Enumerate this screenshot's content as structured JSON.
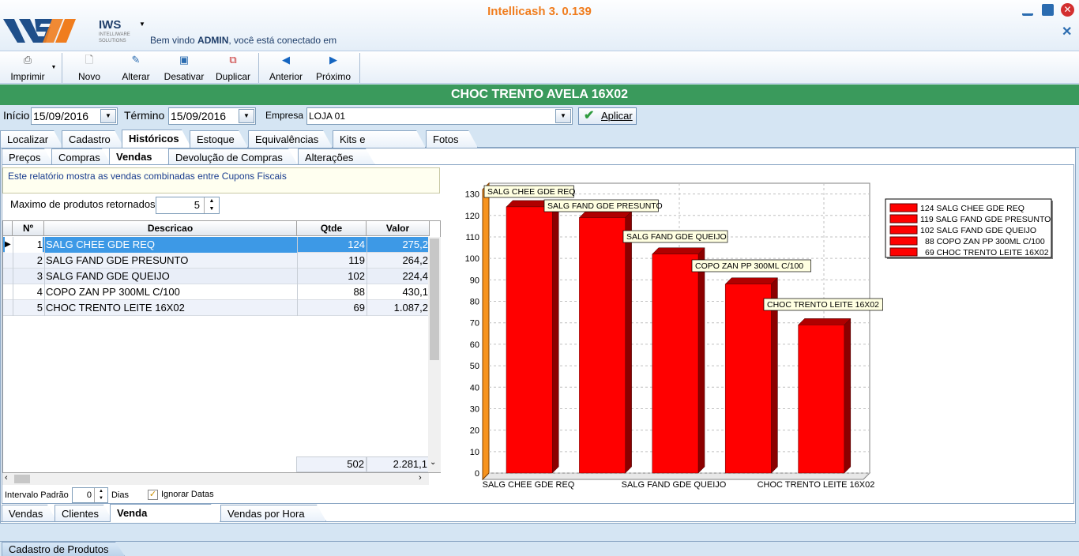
{
  "app": {
    "title": "Intellicash 3. 0.139",
    "logo_text": "IWS",
    "logo_sub1": "INTELLIWARE",
    "logo_sub2": "SOLUTIONS",
    "welcome_prefix": "Bem vindo ",
    "welcome_user": "ADMIN",
    "welcome_suffix": ", você está conectado em"
  },
  "toolbar": {
    "imprimir": "Imprimir",
    "novo": "Novo",
    "alterar": "Alterar",
    "desativar": "Desativar",
    "duplicar": "Duplicar",
    "anterior": "Anterior",
    "proximo": "Próximo"
  },
  "product": {
    "title": "CHOC TRENTO AVELA 16X02"
  },
  "filters": {
    "inicio_label": "Início",
    "inicio_value": "15/09/2016",
    "termino_label": "Término",
    "termino_value": "15/09/2016",
    "empresa_label": "Empresa",
    "empresa_value": "LOJA 01",
    "apply_label": "Aplicar"
  },
  "main_tabs": [
    "Localizar",
    "Cadastro",
    "Históricos",
    "Estoque",
    "Equivalências",
    "Kits e Produção",
    "Fotos"
  ],
  "sub_tabs": [
    "Preços",
    "Compras",
    "Vendas",
    "Devolução de Compras",
    "Alterações"
  ],
  "bottom_tabs": [
    "Vendas",
    "Clientes",
    "Venda Combinada",
    "Vendas por Hora"
  ],
  "info_text": "Este relatório mostra as vendas combinadas entre Cupons Fiscais",
  "max_label": "Maximo de produtos retornados",
  "max_value": "5",
  "grid": {
    "headers": [
      "Nº",
      "Descricao",
      "Qtde",
      "Valor"
    ],
    "rows": [
      {
        "n": "1",
        "desc": "SALG CHEE GDE REQ",
        "qtde": "124",
        "valor": "275,2"
      },
      {
        "n": "2",
        "desc": "SALG FAND GDE PRESUNTO",
        "qtde": "119",
        "valor": "264,2"
      },
      {
        "n": "3",
        "desc": "SALG FAND GDE QUEIJO",
        "qtde": "102",
        "valor": "224,4"
      },
      {
        "n": "4",
        "desc": "COPO ZAN PP 300ML C/100",
        "qtde": "88",
        "valor": "430,1"
      },
      {
        "n": "5",
        "desc": "CHOC TRENTO LEITE 16X02",
        "qtde": "69",
        "valor": "1.087,2"
      }
    ],
    "total_qtde": "502",
    "total_valor": "2.281,1"
  },
  "intervalo_label": "Intervalo Padrão",
  "intervalo_value": "0",
  "dias_label": "Dias",
  "ignorar_label": "Ignorar Datas",
  "status_tab": "Cadastro de Produtos",
  "colors": {
    "bar": "#ff0000",
    "bar_dark": "#8b0000",
    "header_green": "#3a9a5c",
    "title_orange": "#f07d1e"
  },
  "chart_data": {
    "type": "bar",
    "categories": [
      "SALG CHEE GDE REQ",
      "SALG FAND GDE PRESUNTO",
      "SALG FAND GDE QUEIJO",
      "COPO ZAN PP 300ML C/100",
      "CHOC TRENTO LEITE 16X02"
    ],
    "values": [
      124,
      119,
      102,
      88,
      69
    ],
    "ylim": [
      0,
      135
    ],
    "yticks": [
      0,
      10,
      20,
      30,
      40,
      50,
      60,
      70,
      80,
      90,
      100,
      110,
      120,
      130
    ],
    "x_tick_labels": [
      "SALG CHEE GDE REQ",
      "SALG FAND GDE QUEIJO",
      "CHOC TRENTO LEITE 16X02"
    ],
    "legend": [
      "124 SALG CHEE GDE REQ",
      "119 SALG FAND GDE PRESUNTO",
      "102 SALG FAND GDE QUEIJO",
      "88 COPO ZAN PP 300ML C/100",
      "69 CHOC TRENTO LEITE 16X02"
    ],
    "legend_position": "top-right",
    "grid": true
  }
}
